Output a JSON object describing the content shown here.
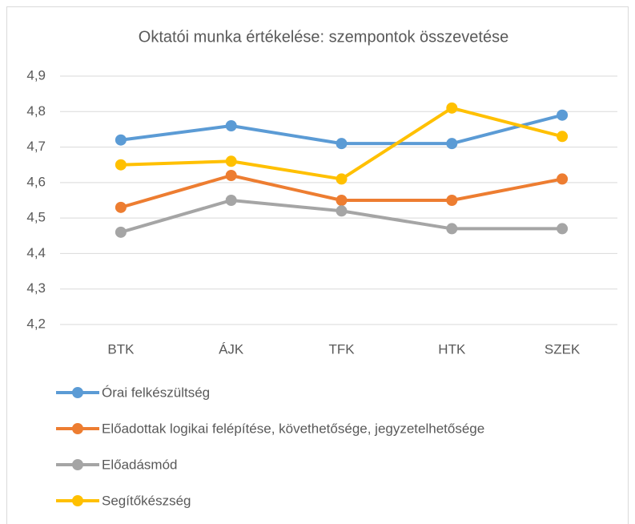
{
  "chart_data": {
    "type": "line",
    "title": "Oktatói munka értékelése: szempontok összevetése",
    "categories": [
      "BTK",
      "ÁJK",
      "TFK",
      "HTK",
      "SZEK"
    ],
    "series": [
      {
        "name": "Órai felkészültség",
        "color": "#5b9bd5",
        "values": [
          4.72,
          4.76,
          4.71,
          4.71,
          4.79
        ]
      },
      {
        "name": "Előadottak logikai felépítése, követhetősége, jegyzetelhetősége",
        "color": "#ed7d31",
        "values": [
          4.53,
          4.62,
          4.55,
          4.55,
          4.61
        ]
      },
      {
        "name": "Előadásmód",
        "color": "#a5a5a5",
        "values": [
          4.46,
          4.55,
          4.52,
          4.47,
          4.47
        ]
      },
      {
        "name": "Segítőkészség",
        "color": "#ffc000",
        "values": [
          4.65,
          4.66,
          4.61,
          4.81,
          4.73
        ]
      }
    ],
    "ylim": [
      4.2,
      4.9
    ],
    "yticks": [
      {
        "value": 4.2,
        "label": "4,2"
      },
      {
        "value": 4.3,
        "label": "4,3"
      },
      {
        "value": 4.4,
        "label": "4,4"
      },
      {
        "value": 4.5,
        "label": "4,5"
      },
      {
        "value": 4.6,
        "label": "4,6"
      },
      {
        "value": 4.7,
        "label": "4,7"
      },
      {
        "value": 4.8,
        "label": "4,8"
      },
      {
        "value": 4.9,
        "label": "4,9"
      }
    ],
    "grid": true,
    "legend": "bottom"
  }
}
